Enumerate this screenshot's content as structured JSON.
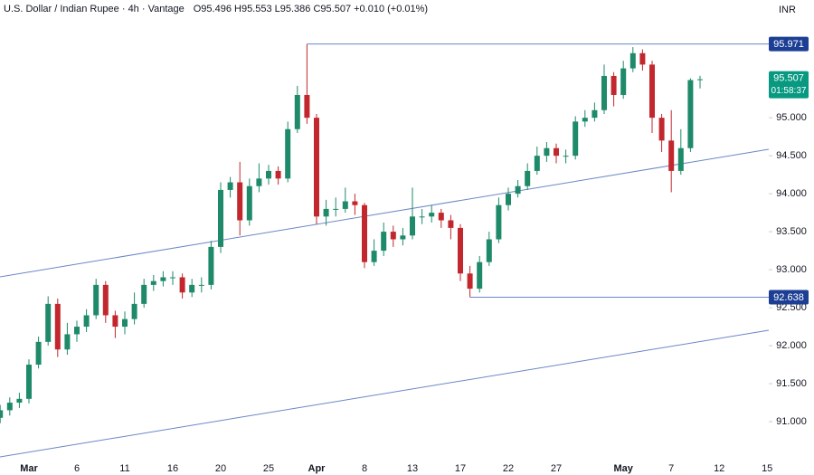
{
  "chart_data": {
    "type": "candlestick",
    "title": "U.S. Dollar / Indian Rupee · 4h · Vantage",
    "subtitle": "O95.496 H95.553 L95.386 C95.507 +0.010 (+0.01%)",
    "currency": "INR",
    "categories": [
      null,
      null,
      null,
      "Mar",
      null,
      null,
      null,
      null,
      "6",
      null,
      null,
      null,
      null,
      "11",
      null,
      null,
      null,
      null,
      "16",
      null,
      null,
      null,
      null,
      "20",
      null,
      null,
      null,
      null,
      "25",
      null,
      null,
      null,
      null,
      "Apr",
      null,
      null,
      null,
      null,
      "8",
      null,
      null,
      null,
      null,
      "13",
      null,
      null,
      null,
      null,
      "17",
      null,
      null,
      null,
      null,
      "22",
      null,
      null,
      null,
      null,
      "27",
      null,
      null,
      null,
      null,
      null,
      null,
      "May",
      null,
      null,
      null,
      null,
      "7",
      null,
      null,
      null,
      null,
      "12",
      null,
      null,
      null,
      null,
      "15"
    ],
    "open": [
      91.05,
      91.15,
      91.25,
      91.3,
      91.75,
      92.05,
      92.55,
      91.95,
      92.15,
      92.25,
      92.4,
      92.8,
      92.4,
      92.25,
      92.35,
      92.55,
      92.8,
      92.85,
      92.9,
      92.9,
      92.7,
      92.8,
      92.8,
      93.3,
      94.05,
      94.15,
      93.65,
      94.1,
      94.2,
      94.3,
      94.2,
      94.85,
      95.3,
      95.0,
      93.7,
      93.8,
      93.8,
      93.9,
      93.85,
      93.1,
      93.25,
      93.5,
      93.4,
      93.45,
      93.7,
      93.7,
      93.75,
      93.65,
      93.55,
      92.95,
      92.75,
      93.1,
      93.4,
      93.85,
      94.0,
      94.1,
      94.3,
      94.5,
      94.6,
      94.5,
      94.5,
      94.95,
      95.0,
      95.1,
      95.55,
      95.3,
      95.65,
      95.85,
      95.7,
      95.0,
      94.7,
      94.3,
      94.6,
      95.496,
      null,
      null,
      null,
      null,
      null,
      null,
      null
    ],
    "high": [
      91.22,
      91.32,
      91.38,
      91.82,
      92.12,
      92.65,
      92.62,
      92.3,
      92.33,
      92.48,
      92.88,
      92.85,
      92.46,
      92.45,
      92.7,
      92.88,
      92.93,
      92.98,
      92.98,
      92.95,
      92.88,
      92.9,
      93.38,
      94.15,
      94.22,
      94.42,
      94.2,
      94.4,
      94.38,
      94.36,
      94.95,
      95.42,
      95.971,
      95.05,
      93.92,
      93.95,
      94.08,
      94.0,
      93.88,
      93.4,
      93.62,
      93.58,
      93.55,
      94.08,
      93.8,
      93.85,
      93.8,
      93.72,
      93.6,
      93.05,
      93.18,
      93.5,
      93.95,
      94.08,
      94.18,
      94.4,
      94.62,
      94.68,
      94.66,
      94.58,
      95.02,
      95.1,
      95.2,
      95.7,
      95.6,
      95.75,
      95.93,
      95.9,
      95.75,
      95.05,
      95.1,
      94.85,
      95.52,
      95.553,
      null,
      null,
      null,
      null,
      null,
      null,
      null
    ],
    "low": [
      90.98,
      91.08,
      91.18,
      91.24,
      91.7,
      92.0,
      91.85,
      91.88,
      92.05,
      92.18,
      92.35,
      92.3,
      92.1,
      92.15,
      92.28,
      92.5,
      92.72,
      92.78,
      92.8,
      92.62,
      92.64,
      92.7,
      92.74,
      93.22,
      93.95,
      93.45,
      93.58,
      94.02,
      94.12,
      94.12,
      94.15,
      94.8,
      94.92,
      93.6,
      93.58,
      93.7,
      93.75,
      93.72,
      93.02,
      93.05,
      93.18,
      93.3,
      93.32,
      93.4,
      93.6,
      93.62,
      93.55,
      93.4,
      92.85,
      92.638,
      92.7,
      93.05,
      93.35,
      93.78,
      93.95,
      94.05,
      94.25,
      94.42,
      94.4,
      94.4,
      94.45,
      94.88,
      94.95,
      95.05,
      95.15,
      95.25,
      95.6,
      95.62,
      94.8,
      94.55,
      94.02,
      94.25,
      94.55,
      95.386,
      null,
      null,
      null,
      null,
      null,
      null,
      null
    ],
    "close": [
      91.15,
      91.25,
      91.3,
      91.75,
      92.05,
      92.55,
      91.95,
      92.15,
      92.25,
      92.4,
      92.8,
      92.4,
      92.25,
      92.35,
      92.55,
      92.8,
      92.85,
      92.9,
      92.9,
      92.7,
      92.8,
      92.8,
      93.3,
      94.05,
      94.15,
      93.65,
      94.1,
      94.2,
      94.3,
      94.2,
      94.85,
      95.3,
      95.0,
      93.7,
      93.8,
      93.8,
      93.9,
      93.85,
      93.1,
      93.25,
      93.5,
      93.4,
      93.45,
      93.7,
      93.7,
      93.75,
      93.65,
      93.55,
      92.95,
      92.75,
      93.1,
      93.4,
      93.85,
      94.0,
      94.1,
      94.3,
      94.5,
      94.6,
      94.5,
      94.5,
      94.95,
      95.0,
      95.1,
      95.55,
      95.3,
      95.65,
      95.85,
      95.7,
      95.0,
      94.7,
      94.3,
      94.6,
      95.496,
      95.507,
      null,
      null,
      null,
      null,
      null,
      null,
      null
    ],
    "up_color": "#1e8a6a",
    "down_color": "#c2272d",
    "ylim": [
      90.5,
      96.55
    ],
    "yticks": [
      {
        "value": 91,
        "label": "91.000"
      },
      {
        "value": 91.5,
        "label": "91.500"
      },
      {
        "value": 92,
        "label": "92.000"
      },
      {
        "value": 92.5,
        "label": "92.500"
      },
      {
        "value": 93,
        "label": "93.000"
      },
      {
        "value": 93.5,
        "label": "93.500"
      },
      {
        "value": 94,
        "label": "94.000"
      },
      {
        "value": 94.5,
        "label": "94.500"
      },
      {
        "value": 95,
        "label": "95.000"
      }
    ],
    "levels": [
      {
        "value": 95.971,
        "label": "95.971"
      },
      {
        "value": 92.638,
        "label": "92.638"
      }
    ],
    "level_color": "#1c3f95",
    "last_price": {
      "value": 95.507,
      "label": "95.507"
    },
    "countdown": "01:58:37",
    "last_color": "#089981"
  }
}
